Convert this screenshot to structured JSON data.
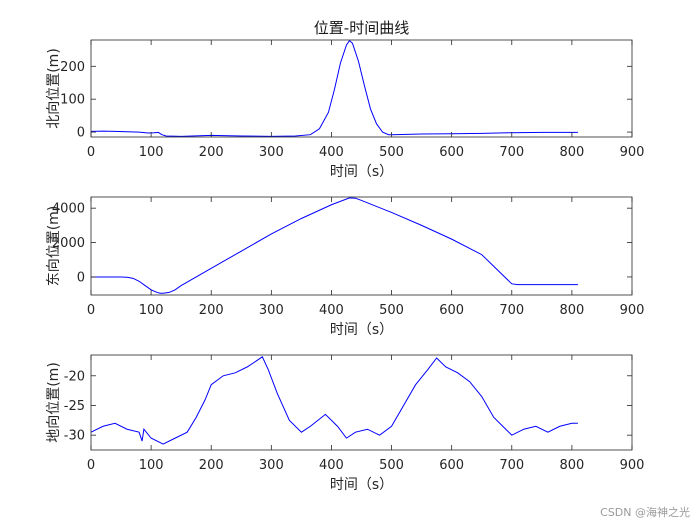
{
  "figure": {
    "watermark": "CSDN @海神之光",
    "line_color": "#0000ff"
  },
  "chart_data": [
    {
      "type": "line",
      "title": "位置-时间曲线",
      "xlabel": "时间（s）",
      "ylabel": "北向位置(m)",
      "xlim": [
        0,
        900
      ],
      "ylim": [
        -15,
        280
      ],
      "xticks": [
        0,
        100,
        200,
        300,
        400,
        500,
        600,
        700,
        800,
        900
      ],
      "yticks": [
        0,
        100,
        200
      ],
      "grid": false,
      "series": [
        {
          "x": [
            0,
            20,
            40,
            60,
            80,
            95,
            105,
            112,
            118,
            125,
            150,
            200,
            250,
            300,
            340,
            365,
            380,
            395,
            405,
            415,
            425,
            430,
            435,
            445,
            455,
            465,
            475,
            485,
            495,
            500,
            550,
            600,
            650,
            700,
            750,
            810
          ],
          "y": [
            2,
            3,
            2,
            1,
            0,
            -3,
            -2,
            -1,
            -8,
            -12,
            -13,
            -10,
            -12,
            -13,
            -12,
            -8,
            10,
            60,
            130,
            210,
            265,
            278,
            270,
            215,
            140,
            70,
            25,
            0,
            -8,
            -8,
            -6,
            -5,
            -4,
            -2,
            -1,
            -1
          ]
        }
      ]
    },
    {
      "type": "line",
      "title": "",
      "xlabel": "时间（s）",
      "ylabel": "东向位置(m)",
      "xlim": [
        0,
        900
      ],
      "ylim": [
        -1050,
        4650
      ],
      "xticks": [
        0,
        100,
        200,
        300,
        400,
        500,
        600,
        700,
        800,
        900
      ],
      "yticks": [
        0,
        2000,
        4000
      ],
      "grid": false,
      "series": [
        {
          "x": [
            0,
            50,
            60,
            70,
            80,
            90,
            100,
            110,
            115,
            120,
            130,
            140,
            150,
            200,
            250,
            300,
            350,
            400,
            430,
            440,
            450,
            500,
            550,
            600,
            650,
            700,
            710,
            750,
            810
          ],
          "y": [
            0,
            0,
            -20,
            -80,
            -250,
            -500,
            -750,
            -900,
            -950,
            -950,
            -900,
            -750,
            -500,
            500,
            1500,
            2500,
            3400,
            4200,
            4600,
            4580,
            4450,
            3750,
            3000,
            2200,
            1300,
            -400,
            -450,
            -450,
            -450
          ]
        }
      ]
    },
    {
      "type": "line",
      "title": "",
      "xlabel": "时间（s）",
      "ylabel": "地向位置(m)",
      "xlim": [
        0,
        900
      ],
      "ylim": [
        -32.5,
        -16.5
      ],
      "xticks": [
        0,
        100,
        200,
        300,
        400,
        500,
        600,
        700,
        800,
        900
      ],
      "yticks": [
        -20,
        -25,
        -30
      ],
      "grid": false,
      "series": [
        {
          "x": [
            0,
            20,
            40,
            60,
            80,
            85,
            88,
            100,
            120,
            140,
            160,
            175,
            190,
            200,
            220,
            240,
            260,
            275,
            285,
            295,
            310,
            330,
            350,
            365,
            390,
            410,
            425,
            440,
            460,
            480,
            500,
            520,
            540,
            560,
            575,
            590,
            610,
            630,
            650,
            670,
            690,
            700,
            720,
            740,
            760,
            780,
            800,
            810
          ],
          "y": [
            -29.5,
            -28.5,
            -28.0,
            -29.0,
            -29.5,
            -31.0,
            -29.0,
            -30.5,
            -31.5,
            -30.5,
            -29.5,
            -27.0,
            -24.0,
            -21.5,
            -20.0,
            -19.5,
            -18.5,
            -17.5,
            -16.8,
            -19.0,
            -23.0,
            -27.5,
            -29.5,
            -28.5,
            -26.5,
            -28.5,
            -30.5,
            -29.5,
            -29.0,
            -30.0,
            -28.5,
            -25.0,
            -21.5,
            -19.0,
            -17.0,
            -18.5,
            -19.5,
            -21.0,
            -23.5,
            -27.0,
            -29.0,
            -30.0,
            -29.0,
            -28.5,
            -29.5,
            -28.5,
            -28.0,
            -28.0
          ]
        }
      ]
    }
  ]
}
